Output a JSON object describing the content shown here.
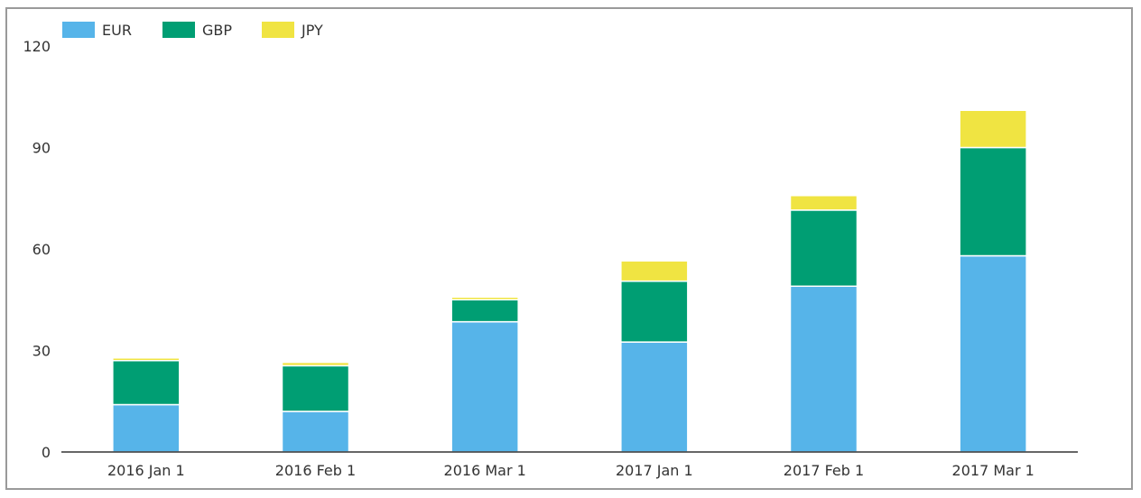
{
  "chart_data": {
    "type": "bar",
    "stacked": true,
    "categories": [
      "2016 Jan 1",
      "2016 Feb 1",
      "2016 Mar 1",
      "2017 Jan 1",
      "2017 Feb 1",
      "2017 Mar 1"
    ],
    "series": [
      {
        "name": "EUR",
        "color": "#56b4e9",
        "values": [
          14,
          12,
          38.5,
          32.5,
          49,
          58
        ]
      },
      {
        "name": "GBP",
        "color": "#009e73",
        "values": [
          13,
          13.5,
          6.5,
          18,
          22.5,
          32
        ]
      },
      {
        "name": "JPY",
        "color": "#f0e442",
        "values": [
          0.8,
          1,
          0.8,
          6,
          4.3,
          11
        ]
      }
    ],
    "ylim": [
      0,
      120
    ],
    "yticks": [
      0,
      30,
      60,
      90,
      120
    ],
    "legend_position": "top-left",
    "grid": false
  }
}
